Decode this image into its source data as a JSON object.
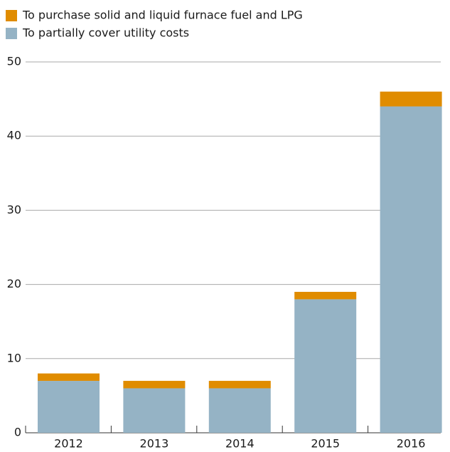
{
  "chart_data": {
    "type": "stacked_bar",
    "categories": [
      "2012",
      "2013",
      "2014",
      "2015",
      "2016"
    ],
    "series": [
      {
        "name": "To purchase solid and liquid furnace fuel and LPG",
        "color": "#e08c00",
        "values": [
          1,
          1,
          1,
          1,
          2
        ]
      },
      {
        "name": "To partially cover utility costs",
        "color": "#95b3c5",
        "values": [
          7,
          6,
          6,
          18,
          44
        ]
      }
    ],
    "ylim": [
      0,
      50
    ],
    "yticks": [
      0,
      10,
      20,
      30,
      40,
      50
    ],
    "grid": true,
    "legend": "top-left"
  }
}
